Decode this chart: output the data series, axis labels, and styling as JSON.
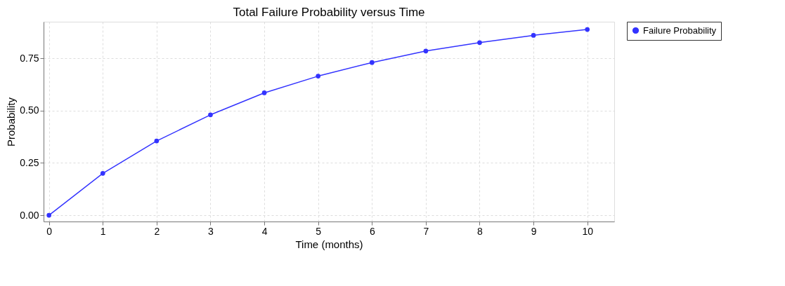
{
  "chart_data": {
    "type": "line",
    "title": "Total Failure Probability versus Time",
    "xlabel": "Time (months)",
    "ylabel": "Probability",
    "x": [
      0,
      1,
      2,
      3,
      4,
      5,
      6,
      7,
      8,
      9,
      10
    ],
    "series": [
      {
        "name": "Failure Probability",
        "color": "#3333ff",
        "values": [
          0,
          0.2,
          0.355,
          0.48,
          0.585,
          0.665,
          0.73,
          0.785,
          0.825,
          0.86,
          0.888
        ]
      }
    ],
    "xlim": [
      -0.1,
      10.5
    ],
    "xticks": [
      0,
      1,
      2,
      3,
      4,
      5,
      6,
      7,
      8,
      9,
      10
    ],
    "ylim": [
      -0.03,
      0.925
    ],
    "yticks": [
      {
        "value": 0,
        "label": "0.00"
      },
      {
        "value": 0.25,
        "label": "0.25"
      },
      {
        "value": 0.5,
        "label": "0.50"
      },
      {
        "value": 0.75,
        "label": "0.75"
      }
    ],
    "grid": true,
    "legend": "right",
    "marker": "circle",
    "line_style": "solid"
  }
}
